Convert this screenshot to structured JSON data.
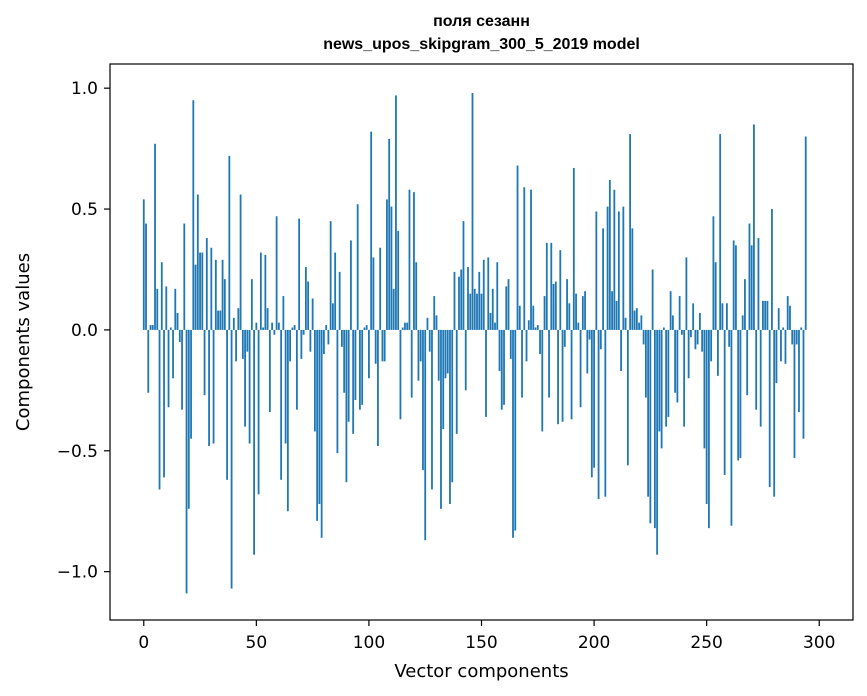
{
  "chart_data": {
    "type": "bar",
    "title_lines": [
      "поля сезанн",
      "news_upos_skipgram_300_5_2019 model"
    ],
    "xlabel": "Vector components",
    "ylabel": "Components values",
    "xlim": [
      -15,
      315
    ],
    "ylim": [
      -1.2,
      1.1
    ],
    "x_ticks": [
      0,
      50,
      100,
      150,
      200,
      250,
      300
    ],
    "x_tick_labels": [
      "0",
      "50",
      "100",
      "150",
      "200",
      "250",
      "300"
    ],
    "y_ticks": [
      -1.0,
      -0.5,
      0.0,
      0.5,
      1.0
    ],
    "y_tick_labels": [
      "−1.0",
      "−0.5",
      "0.0",
      "0.5",
      "1.0"
    ],
    "bar_color": "#1f77b4",
    "grid": false,
    "legend": false,
    "values": [
      0.54,
      0.44,
      -0.26,
      0.02,
      0.02,
      0.77,
      0.17,
      -0.66,
      0.28,
      -0.61,
      0.18,
      -0.32,
      0.01,
      -0.2,
      0.17,
      0.07,
      -0.05,
      -0.33,
      0.44,
      -1.09,
      -0.74,
      -0.45,
      0.95,
      0.27,
      0.56,
      0.32,
      0.32,
      -0.27,
      0.38,
      -0.48,
      0.34,
      -0.47,
      0.29,
      0.08,
      0.08,
      0.29,
      0.21,
      -0.62,
      0.72,
      -1.07,
      0.05,
      -0.13,
      0.09,
      0.56,
      -0.12,
      -0.4,
      -0.09,
      -0.47,
      0.21,
      -0.93,
      0.03,
      -0.68,
      0.32,
      0.01,
      0.31,
      0.09,
      -0.34,
      0.03,
      -0.02,
      0.47,
      0.03,
      -0.62,
      0.14,
      -0.47,
      -0.75,
      -0.13,
      0.01,
      0.02,
      -0.33,
      0.46,
      -0.12,
      -0.02,
      0.26,
      0.2,
      -0.09,
      0.13,
      -0.42,
      -0.79,
      -0.72,
      -0.86,
      -0.1,
      0.02,
      -0.06,
      0.45,
      0.11,
      0.32,
      -0.51,
      0.24,
      -0.07,
      -0.26,
      -0.63,
      -0.38,
      0.37,
      -0.43,
      -0.29,
      0.52,
      -0.33,
      -0.31,
      0.01,
      0.02,
      -0.2,
      0.82,
      0.3,
      -0.14,
      -0.48,
      0.34,
      -0.13,
      -0.13,
      0.54,
      0.79,
      0.51,
      0.17,
      0.97,
      0.41,
      -0.37,
      0.01,
      0.03,
      0.03,
      0.58,
      -0.28,
      0.57,
      0.28,
      -0.21,
      -0.13,
      -0.58,
      -0.87,
      0.05,
      -0.09,
      -0.66,
      0.14,
      0.06,
      -0.21,
      -0.74,
      -0.41,
      -0.2,
      -0.18,
      -0.72,
      -0.63,
      0.24,
      -0.43,
      0.22,
      0.25,
      0.45,
      -0.25,
      0.26,
      0.15,
      0.98,
      0.17,
      0.15,
      0.24,
      0.15,
      0.29,
      -0.36,
      0.3,
      0.07,
      0.17,
      0.03,
      0.28,
      -0.17,
      -0.33,
      -0.31,
      0.18,
      0.21,
      -0.12,
      -0.86,
      -0.83,
      0.68,
      0.1,
      -0.28,
      0.59,
      -0.13,
      0.04,
      0.58,
      0.1,
      0.01,
      0.02,
      -0.1,
      -0.42,
      0.14,
      0.36,
      -0.28,
      0.36,
      0.19,
      0.2,
      -0.39,
      0.33,
      -0.38,
      -0.07,
      0.21,
      0.11,
      -0.37,
      0.67,
      0.15,
      0.03,
      -0.32,
      0.14,
      0.16,
      -0.18,
      -0.04,
      -0.61,
      -0.57,
      0.49,
      -0.7,
      -0.08,
      0.42,
      -0.69,
      0.51,
      0.62,
      0.16,
      0.58,
      0.12,
      0.49,
      -0.17,
      0.51,
      0.05,
      -0.56,
      0.81,
      0.42,
      0.08,
      0.09,
      0.03,
      0.06,
      -0.06,
      -0.28,
      -0.69,
      -0.8,
      0.25,
      -0.82,
      -0.93,
      -0.42,
      -0.49,
      0.01,
      -0.4,
      -0.36,
      0.16,
      0.06,
      -0.26,
      -0.3,
      0.14,
      -0.02,
      -0.4,
      0.3,
      -0.2,
      -0.03,
      0.11,
      -0.08,
      -0.06,
      0.07,
      -0.09,
      -0.49,
      -0.72,
      -0.82,
      -0.13,
      0.47,
      0.28,
      -0.19,
      0.81,
      0.11,
      -0.6,
      0.11,
      -0.07,
      -0.81,
      0.37,
      0.35,
      -0.54,
      -0.53,
      0.06,
      0.21,
      -0.27,
      0.44,
      0.35,
      0.85,
      -0.33,
      0.38,
      -0.4,
      0.12,
      0.12,
      0.12,
      -0.65,
      0.5,
      -0.69,
      -0.22,
      0.09,
      -0.13,
      0.01,
      -0.14,
      0.14,
      0.1,
      -0.06,
      -0.53,
      -0.06,
      -0.34,
      0.01,
      -0.45,
      0.8
    ]
  }
}
